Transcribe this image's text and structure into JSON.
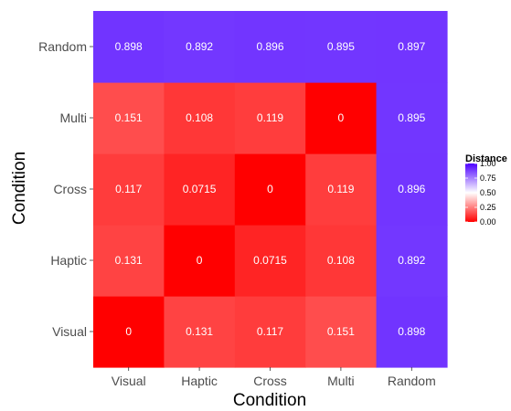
{
  "chart_data": {
    "type": "heatmap",
    "title": "",
    "xlabel": "Condition",
    "ylabel": "Condition",
    "x_categories": [
      "Visual",
      "Haptic",
      "Cross",
      "Multi",
      "Random"
    ],
    "y_categories": [
      "Visual",
      "Haptic",
      "Cross",
      "Multi",
      "Random"
    ],
    "values": [
      [
        0,
        0.131,
        0.117,
        0.151,
        0.898
      ],
      [
        0.131,
        0,
        0.0715,
        0.108,
        0.892
      ],
      [
        0.117,
        0.0715,
        0,
        0.119,
        0.896
      ],
      [
        0.151,
        0.108,
        0.119,
        0,
        0.895
      ],
      [
        0.898,
        0.892,
        0.896,
        0.895,
        0.897
      ]
    ],
    "value_labels": [
      [
        "0",
        "0.131",
        "0.117",
        "0.151",
        "0.898"
      ],
      [
        "0.131",
        "0",
        "0.0715",
        "0.108",
        "0.892"
      ],
      [
        "0.117",
        "0.0715",
        "0",
        "0.119",
        "0.896"
      ],
      [
        "0.151",
        "0.108",
        "0.119",
        "0",
        "0.895"
      ],
      [
        "0.898",
        "0.892",
        "0.896",
        "0.895",
        "0.897"
      ]
    ],
    "grid": false,
    "colorscale": {
      "low": "#ff0000",
      "mid": "#ffffff",
      "high": "#4d00ff",
      "midpoint": 0.5,
      "range": [
        0,
        1
      ]
    },
    "legend": {
      "title": "Distance",
      "position": "right",
      "ticks": [
        "0.00",
        "0.25",
        "0.50",
        "0.75",
        "1.00"
      ],
      "tick_values": [
        0,
        0.25,
        0.5,
        0.75,
        1
      ]
    }
  }
}
